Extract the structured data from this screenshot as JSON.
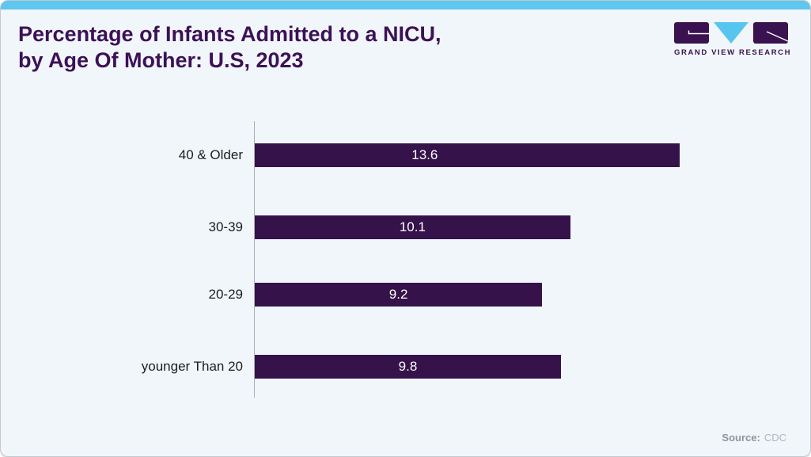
{
  "page": {
    "background": "#f0f6fa",
    "accent_color": "#5ec6ef"
  },
  "header": {
    "title_line1": "Percentage of Infants Admitted to a NICU,",
    "title_line2": "by Age Of Mother: U.S, 2023",
    "title_color": "#3d1156"
  },
  "logo": {
    "name": "Grand View Research",
    "text": "GRAND VIEW RESEARCH",
    "purple": "#3a1250",
    "cyan": "#58c5ef"
  },
  "chart_data": {
    "type": "bar",
    "orientation": "horizontal",
    "title": "Percentage of Infants Admitted to a NICU, by Age Of Mother: U.S, 2023",
    "categories": [
      "40 & Older",
      "30-39",
      "20-29",
      "younger Than 20"
    ],
    "values": [
      13.6,
      10.1,
      9.2,
      9.8
    ],
    "xlim": [
      0,
      13.6
    ],
    "grid": false,
    "legend": false,
    "bar_color": "#36124a",
    "value_label_color": "#ffffff",
    "value_labels_inside": true
  },
  "footer": {
    "source_label": "Source:",
    "source_value": "CDC"
  }
}
